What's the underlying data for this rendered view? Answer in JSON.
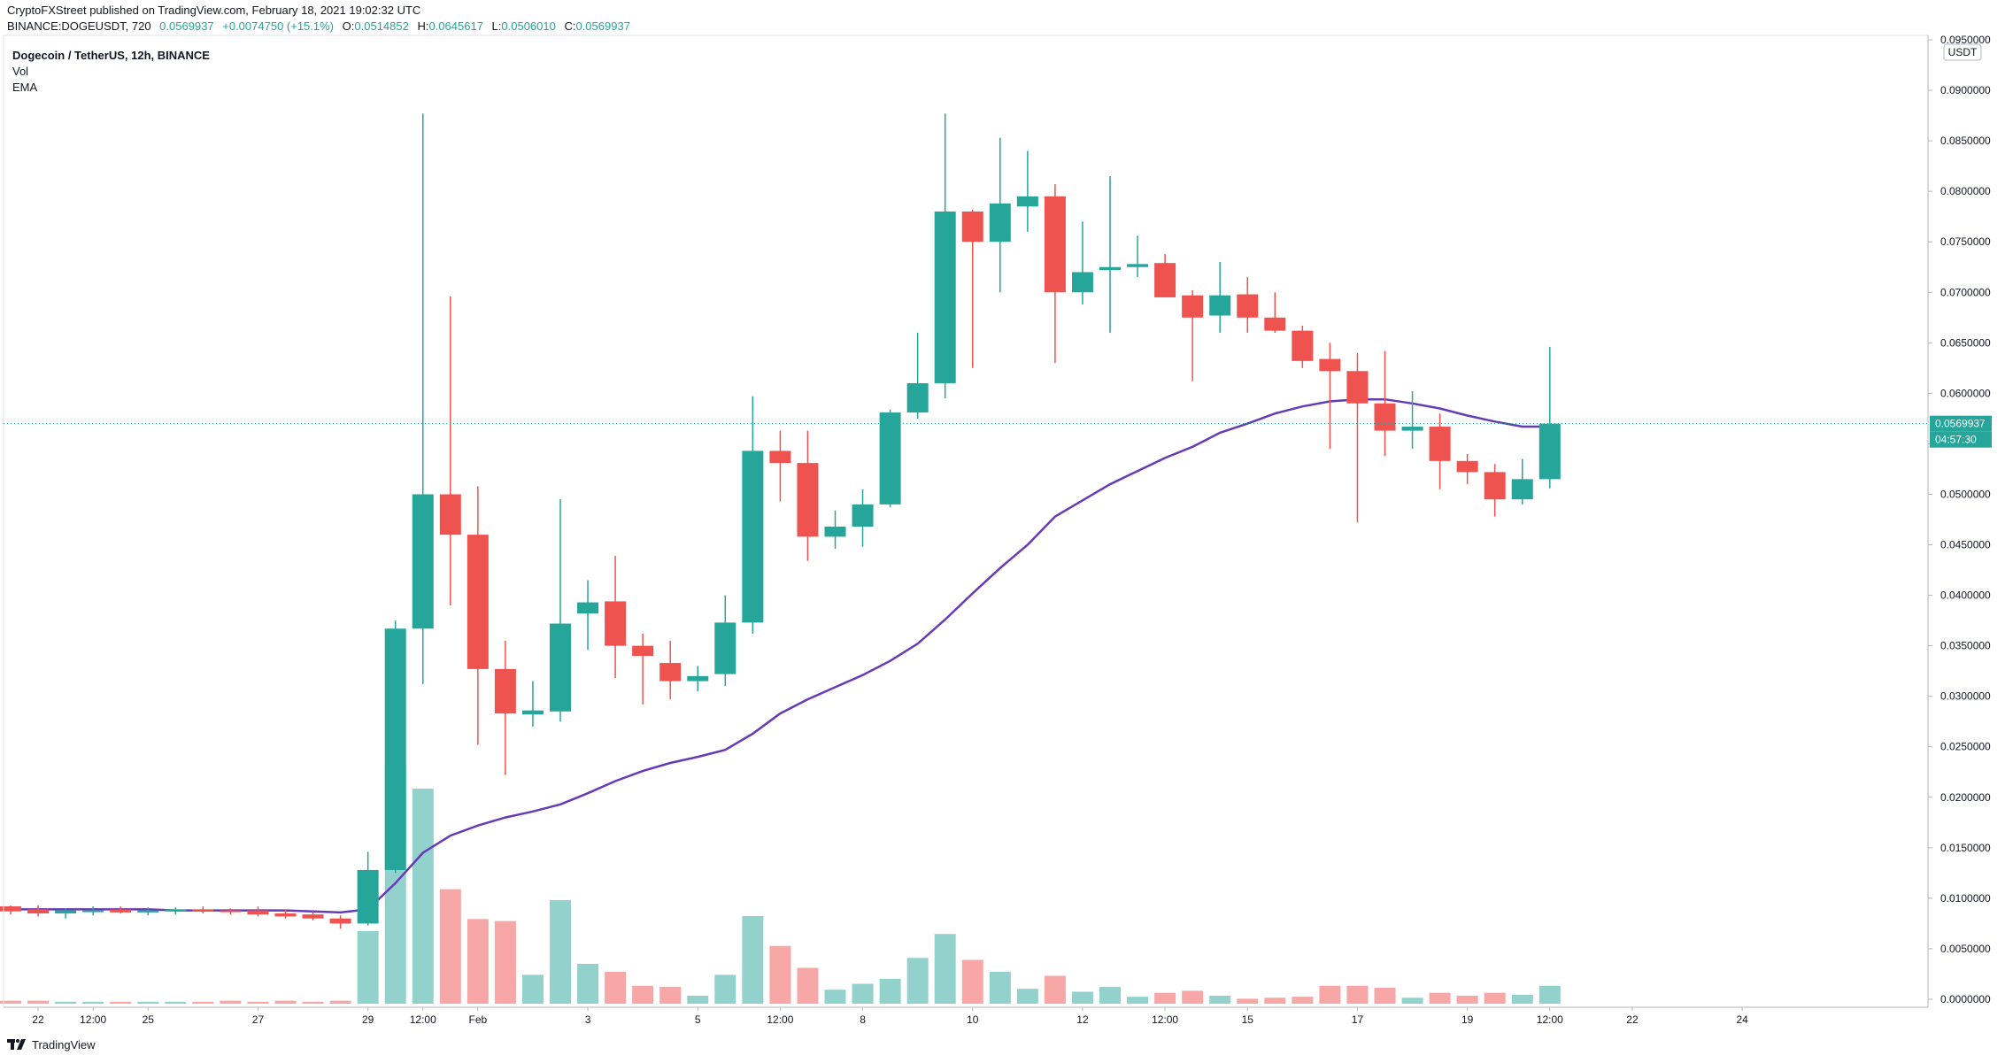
{
  "header": {
    "publisher_line": "CryptoFXStreet published on TradingView.com, February 18, 2021 19:02:32 UTC",
    "symbol": "BINANCE:DOGEUSDT, 720",
    "last": "0.0569937",
    "change": "+0.0074750 (+15.1%)",
    "o_label": "O:",
    "o": "0.0514852",
    "h_label": "H:",
    "h": "0.0645617",
    "l_label": "L:",
    "l": "0.0506010",
    "c_label": "C:",
    "c": "0.0569937"
  },
  "legend": {
    "title": "Dogecoin / TetherUS, 12h, BINANCE",
    "vol": "Vol",
    "ema": "EMA"
  },
  "footer": {
    "brand": "TradingView",
    "logo_icon": "tradingview-logo-icon"
  },
  "colors": {
    "up": "#26a69a",
    "down": "#ef5350",
    "vol_up": "#93d2cc",
    "vol_down": "#f7a8a6",
    "ema": "#673ab7",
    "axis_text": "#131722",
    "price_line": "#26a69a"
  },
  "chart_data": {
    "type": "candlestick",
    "title": "Dogecoin / TetherUS, 12h, BINANCE",
    "y_axis": {
      "unit": "USDT",
      "range": [
        -0.002,
        0.096
      ],
      "ticks": [
        "0.0950000",
        "0.0900000",
        "0.0850000",
        "0.0800000",
        "0.0750000",
        "0.0700000",
        "0.0650000",
        "0.0600000",
        "0.0550000",
        "0.0500000",
        "0.0450000",
        "0.0400000",
        "0.0350000",
        "0.0300000",
        "0.0250000",
        "0.0200000",
        "0.0150000",
        "0.0100000",
        "0.0050000",
        "0.0000000"
      ],
      "tick_values": [
        0.095,
        0.09,
        0.085,
        0.08,
        0.075,
        0.07,
        0.065,
        0.06,
        0.055,
        0.05,
        0.045,
        0.04,
        0.035,
        0.03,
        0.025,
        0.02,
        0.015,
        0.01,
        0.005,
        0.0
      ]
    },
    "x_axis": {
      "labels": [
        "22",
        "12:00",
        "25",
        "27",
        "29",
        "12:00",
        "Feb",
        "3",
        "5",
        "12:00",
        "8",
        "10",
        "12",
        "12:00",
        "15",
        "17",
        "19",
        "12:00",
        "22",
        "24"
      ],
      "label_index": [
        1,
        3,
        5,
        9,
        13,
        15,
        17,
        21,
        25,
        28,
        31,
        35,
        39,
        42,
        45,
        49,
        53,
        56,
        59,
        63
      ]
    },
    "price_label": "0.0569937",
    "countdown_label": "04:57:30",
    "candles": [
      {
        "o": 0.0092,
        "h": 0.0093,
        "l": 0.0084,
        "c": 0.0087
      },
      {
        "o": 0.0089,
        "h": 0.0093,
        "l": 0.0082,
        "c": 0.0085
      },
      {
        "o": 0.0085,
        "h": 0.009,
        "l": 0.008,
        "c": 0.0088
      },
      {
        "o": 0.0088,
        "h": 0.0092,
        "l": 0.0083,
        "c": 0.0088
      },
      {
        "o": 0.0089,
        "h": 0.0092,
        "l": 0.0085,
        "c": 0.0086
      },
      {
        "o": 0.0086,
        "h": 0.0091,
        "l": 0.0083,
        "c": 0.0088
      },
      {
        "o": 0.0087,
        "h": 0.0091,
        "l": 0.0084,
        "c": 0.0089
      },
      {
        "o": 0.0089,
        "h": 0.0092,
        "l": 0.0085,
        "c": 0.0088
      },
      {
        "o": 0.0088,
        "h": 0.009,
        "l": 0.0084,
        "c": 0.0087
      },
      {
        "o": 0.0088,
        "h": 0.0092,
        "l": 0.0082,
        "c": 0.0084
      },
      {
        "o": 0.0085,
        "h": 0.0089,
        "l": 0.008,
        "c": 0.0082
      },
      {
        "o": 0.0084,
        "h": 0.0087,
        "l": 0.0078,
        "c": 0.008
      },
      {
        "o": 0.008,
        "h": 0.0083,
        "l": 0.007,
        "c": 0.0075
      },
      {
        "o": 0.0075,
        "h": 0.0146,
        "l": 0.0073,
        "c": 0.0128
      },
      {
        "o": 0.0128,
        "h": 0.0375,
        "l": 0.0125,
        "c": 0.0367
      },
      {
        "o": 0.0367,
        "h": 0.0877,
        "l": 0.0312,
        "c": 0.05
      },
      {
        "o": 0.05,
        "h": 0.0696,
        "l": 0.039,
        "c": 0.046
      },
      {
        "o": 0.046,
        "h": 0.0508,
        "l": 0.0252,
        "c": 0.0327
      },
      {
        "o": 0.0327,
        "h": 0.0355,
        "l": 0.0222,
        "c": 0.0283
      },
      {
        "o": 0.0282,
        "h": 0.0315,
        "l": 0.027,
        "c": 0.0286
      },
      {
        "o": 0.0285,
        "h": 0.0495,
        "l": 0.0275,
        "c": 0.0372
      },
      {
        "o": 0.0382,
        "h": 0.0415,
        "l": 0.0346,
        "c": 0.0393
      },
      {
        "o": 0.0394,
        "h": 0.0439,
        "l": 0.0318,
        "c": 0.035
      },
      {
        "o": 0.035,
        "h": 0.0362,
        "l": 0.0292,
        "c": 0.034
      },
      {
        "o": 0.0333,
        "h": 0.0355,
        "l": 0.0297,
        "c": 0.0315
      },
      {
        "o": 0.0315,
        "h": 0.033,
        "l": 0.0305,
        "c": 0.032
      },
      {
        "o": 0.0322,
        "h": 0.04,
        "l": 0.031,
        "c": 0.0373
      },
      {
        "o": 0.0373,
        "h": 0.0597,
        "l": 0.0362,
        "c": 0.0543
      },
      {
        "o": 0.0543,
        "h": 0.0563,
        "l": 0.0493,
        "c": 0.0531
      },
      {
        "o": 0.0531,
        "h": 0.0563,
        "l": 0.0434,
        "c": 0.0458
      },
      {
        "o": 0.0458,
        "h": 0.0484,
        "l": 0.0446,
        "c": 0.0468
      },
      {
        "o": 0.0468,
        "h": 0.0505,
        "l": 0.0448,
        "c": 0.049
      },
      {
        "o": 0.049,
        "h": 0.0584,
        "l": 0.0487,
        "c": 0.0581
      },
      {
        "o": 0.0581,
        "h": 0.066,
        "l": 0.0575,
        "c": 0.061
      },
      {
        "o": 0.061,
        "h": 0.0877,
        "l": 0.0595,
        "c": 0.078
      },
      {
        "o": 0.078,
        "h": 0.0782,
        "l": 0.0625,
        "c": 0.075
      },
      {
        "o": 0.075,
        "h": 0.0853,
        "l": 0.07,
        "c": 0.0788
      },
      {
        "o": 0.0785,
        "h": 0.084,
        "l": 0.076,
        "c": 0.0795
      },
      {
        "o": 0.0795,
        "h": 0.0807,
        "l": 0.063,
        "c": 0.07
      },
      {
        "o": 0.07,
        "h": 0.077,
        "l": 0.0688,
        "c": 0.072
      },
      {
        "o": 0.0722,
        "h": 0.0815,
        "l": 0.066,
        "c": 0.0725
      },
      {
        "o": 0.0725,
        "h": 0.0756,
        "l": 0.0715,
        "c": 0.0728
      },
      {
        "o": 0.0729,
        "h": 0.0738,
        "l": 0.0695,
        "c": 0.0695
      },
      {
        "o": 0.0697,
        "h": 0.0702,
        "l": 0.0612,
        "c": 0.0675
      },
      {
        "o": 0.0677,
        "h": 0.073,
        "l": 0.066,
        "c": 0.0697
      },
      {
        "o": 0.0698,
        "h": 0.0715,
        "l": 0.066,
        "c": 0.0675
      },
      {
        "o": 0.0675,
        "h": 0.07,
        "l": 0.066,
        "c": 0.0662
      },
      {
        "o": 0.0662,
        "h": 0.0667,
        "l": 0.0625,
        "c": 0.0632
      },
      {
        "o": 0.0634,
        "h": 0.065,
        "l": 0.0545,
        "c": 0.0622
      },
      {
        "o": 0.0622,
        "h": 0.064,
        "l": 0.0472,
        "c": 0.059
      },
      {
        "o": 0.059,
        "h": 0.0642,
        "l": 0.0538,
        "c": 0.0563
      },
      {
        "o": 0.0563,
        "h": 0.0602,
        "l": 0.0545,
        "c": 0.0567
      },
      {
        "o": 0.0567,
        "h": 0.058,
        "l": 0.0505,
        "c": 0.0533
      },
      {
        "o": 0.0533,
        "h": 0.054,
        "l": 0.051,
        "c": 0.0522
      },
      {
        "o": 0.0522,
        "h": 0.053,
        "l": 0.0478,
        "c": 0.0495
      },
      {
        "o": 0.0495,
        "h": 0.0535,
        "l": 0.049,
        "c": 0.0515
      },
      {
        "o": 0.0515,
        "h": 0.0646,
        "l": 0.0506,
        "c": 0.057
      }
    ],
    "volume": [
      0.0003,
      0.0003,
      0.0002,
      0.0002,
      0.0002,
      0.0002,
      0.0002,
      0.0002,
      0.0003,
      0.0002,
      0.0003,
      0.0002,
      0.0003,
      0.0073,
      0.024,
      0.0216,
      0.0115,
      0.0085,
      0.0083,
      0.0029,
      0.0104,
      0.004,
      0.0032,
      0.0018,
      0.0017,
      0.0008,
      0.0029,
      0.0088,
      0.0058,
      0.0036,
      0.0014,
      0.002,
      0.0025,
      0.0046,
      0.007,
      0.0044,
      0.0032,
      0.0015,
      0.0028,
      0.0012,
      0.0017,
      0.0007,
      0.0011,
      0.0013,
      0.0008,
      0.0005,
      0.0006,
      0.0007,
      0.0018,
      0.0018,
      0.0016,
      0.0006,
      0.0011,
      0.0008,
      0.0011,
      0.0009,
      0.0018
    ],
    "ema": [
      0.0089,
      0.0089,
      0.0089,
      0.0089,
      0.0089,
      0.0089,
      0.0088,
      0.0088,
      0.0088,
      0.0088,
      0.0088,
      0.0087,
      0.0086,
      0.0089,
      0.0115,
      0.0145,
      0.0162,
      0.0172,
      0.018,
      0.0186,
      0.0193,
      0.0204,
      0.0216,
      0.0226,
      0.0234,
      0.024,
      0.0247,
      0.0263,
      0.0283,
      0.0297,
      0.0309,
      0.0321,
      0.0335,
      0.0352,
      0.0376,
      0.0402,
      0.0427,
      0.045,
      0.0478,
      0.0494,
      0.051,
      0.0523,
      0.0536,
      0.0547,
      0.0561,
      0.057,
      0.058,
      0.0587,
      0.0592,
      0.0594,
      0.0594,
      0.059,
      0.0585,
      0.0578,
      0.0572,
      0.0567,
      0.0567
    ]
  }
}
